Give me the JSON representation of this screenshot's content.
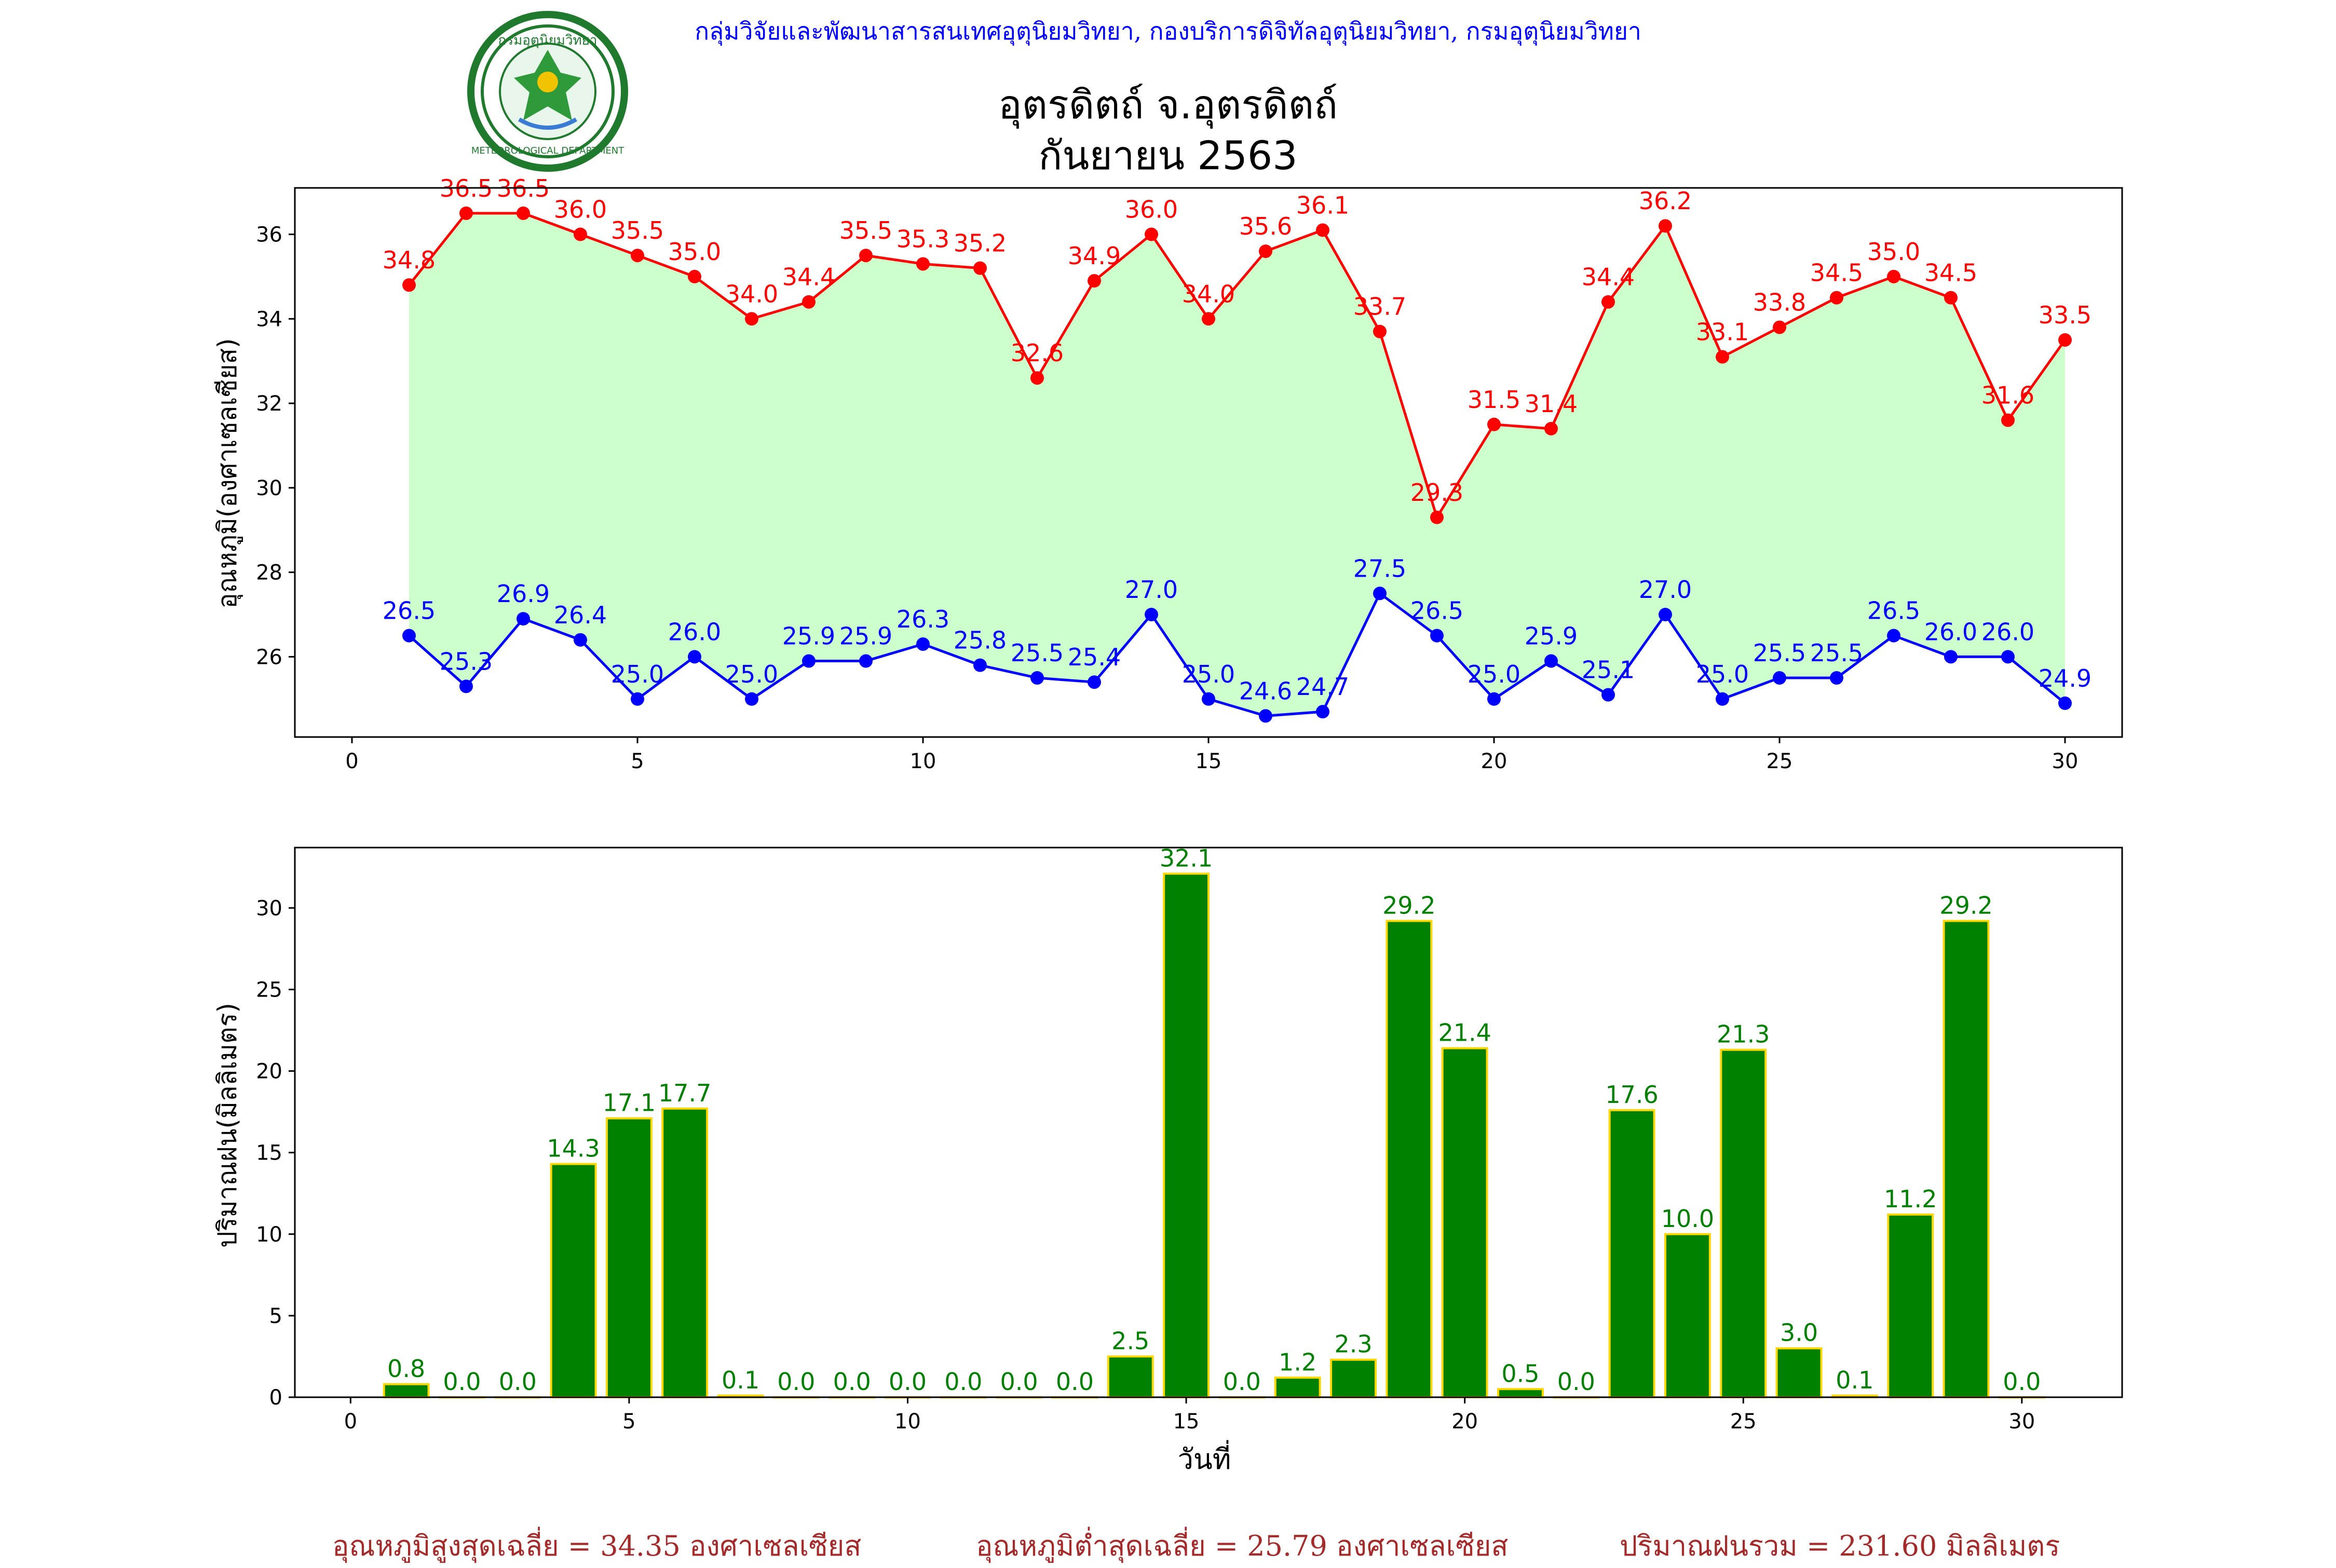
{
  "header": {
    "agency": "กลุ่มวิจัยและพัฒนาสารสนเทศอุตุนิยมวิทยา, กองบริการดิจิทัลอุตุนิยมวิทยา, กรมอุตุนิยมวิทยา",
    "station": "อุตรดิตถ์ จ.อุตรดิตถ์",
    "period": "กันยายน 2563",
    "logo_text": "กรมอุตุนิยมวิทยา",
    "logo_text_en": "METEOROLOGICAL DEPARTMENT"
  },
  "colors": {
    "max_line": "#ff0000",
    "min_line": "#0000ff",
    "fill": "#ccffcc",
    "bar": "#008000",
    "bar_edge": "#ffd700",
    "bar_label": "#008000",
    "agency_text": "#0000ff",
    "footer_text": "#A52A2A"
  },
  "chart_data": [
    {
      "type": "line",
      "ylabel": "อุณหภูมิ(องศาเซลเซียส)",
      "xlabel": "",
      "xlim": [
        -1,
        31
      ],
      "ylim": [
        24.1,
        37.1
      ],
      "xticks": [
        0,
        5,
        10,
        15,
        20,
        25,
        30
      ],
      "yticks": [
        26,
        28,
        30,
        32,
        34,
        36
      ],
      "grid": false,
      "x": [
        1,
        2,
        3,
        4,
        5,
        6,
        7,
        8,
        9,
        10,
        11,
        12,
        13,
        14,
        15,
        16,
        17,
        18,
        19,
        20,
        21,
        22,
        23,
        24,
        25,
        26,
        27,
        28,
        29,
        30
      ],
      "series": [
        {
          "values": [
            34.8,
            36.5,
            36.5,
            36.0,
            35.5,
            35.0,
            34.0,
            34.4,
            35.5,
            35.3,
            35.2,
            32.6,
            34.9,
            36.0,
            34.0,
            35.6,
            36.1,
            33.7,
            29.3,
            31.5,
            31.4,
            34.4,
            36.2,
            33.1,
            33.8,
            34.5,
            35.0,
            34.5,
            31.6,
            33.5
          ],
          "labels": [
            "34.8",
            "36.5",
            "36.5",
            "36.0",
            "35.5",
            "35.0",
            "34.0",
            "34.4",
            "35.5",
            "35.3",
            "35.2",
            "32.6",
            "34.9",
            "36.0",
            "34.0",
            "35.6",
            "36.1",
            "33.7",
            "29.3",
            "31.5",
            "31.4",
            "34.4",
            "36.2",
            "33.1",
            "33.8",
            "34.5",
            "35.0",
            "34.5",
            "31.6",
            "33.5"
          ]
        },
        {
          "values": [
            26.5,
            25.3,
            26.9,
            26.4,
            25.0,
            26.0,
            25.0,
            25.9,
            25.9,
            26.3,
            25.8,
            25.5,
            25.4,
            27.0,
            25.0,
            24.6,
            24.7,
            27.5,
            26.5,
            25.0,
            25.9,
            25.1,
            27.0,
            25.0,
            25.5,
            25.5,
            26.5,
            26.0,
            26.0,
            24.9
          ],
          "labels": [
            "26.5",
            "25.3",
            "26.9",
            "26.4",
            "25.0",
            "26.0",
            "25.0",
            "25.9",
            "25.9",
            "26.3",
            "25.8",
            "25.5",
            "25.4",
            "27.0",
            "25.0",
            "24.6",
            "24.7",
            "27.5",
            "26.5",
            "25.0",
            "25.9",
            "25.1",
            "27.0",
            "25.0",
            "25.5",
            "25.5",
            "26.5",
            "26.0",
            "26.0",
            "24.9"
          ]
        }
      ]
    },
    {
      "type": "bar",
      "ylabel": "ปริมาณฝน(มิลลิเมตร)",
      "xlabel": "วันที่",
      "xlim": [
        -1,
        31.8
      ],
      "ylim": [
        0,
        33.7
      ],
      "xticks": [
        0,
        5,
        10,
        15,
        20,
        25,
        30
      ],
      "yticks": [
        0,
        5,
        10,
        15,
        20,
        25,
        30
      ],
      "grid": false,
      "x": [
        1,
        2,
        3,
        4,
        5,
        6,
        7,
        8,
        9,
        10,
        11,
        12,
        13,
        14,
        15,
        16,
        17,
        18,
        19,
        20,
        21,
        22,
        23,
        24,
        25,
        26,
        27,
        28,
        29,
        30
      ],
      "values": [
        0.8,
        0.0,
        0.0,
        14.3,
        17.1,
        17.7,
        0.1,
        0.0,
        0.0,
        0.0,
        0.0,
        0.0,
        0.0,
        2.5,
        32.1,
        0.0,
        1.2,
        2.3,
        29.2,
        21.4,
        0.5,
        0.0,
        17.6,
        10.0,
        21.3,
        3.0,
        0.1,
        11.2,
        29.2,
        0.0
      ],
      "labels": [
        "0.8",
        "0.0",
        "0.0",
        "14.3",
        "17.1",
        "17.7",
        "0.1",
        "0.0",
        "0.0",
        "0.0",
        "0.0",
        "0.0",
        "0.0",
        "2.5",
        "32.1",
        "0.0",
        "1.2",
        "2.3",
        "29.2",
        "21.4",
        "0.5",
        "0.0",
        "17.6",
        "10.0",
        "21.3",
        "3.0",
        "0.1",
        "11.2",
        "29.2",
        "0.0"
      ]
    }
  ],
  "footer": {
    "avg_max": "อุณหภูมิสูงสุดเฉลี่ย = 34.35 องศาเซลเซียส",
    "avg_min": "อุณหภูมิต่ำสุดเฉลี่ย = 25.79 องศาเซลเซียส",
    "total_rain": "ปริมาณฝนรวม = 231.60 มิลลิเมตร"
  }
}
